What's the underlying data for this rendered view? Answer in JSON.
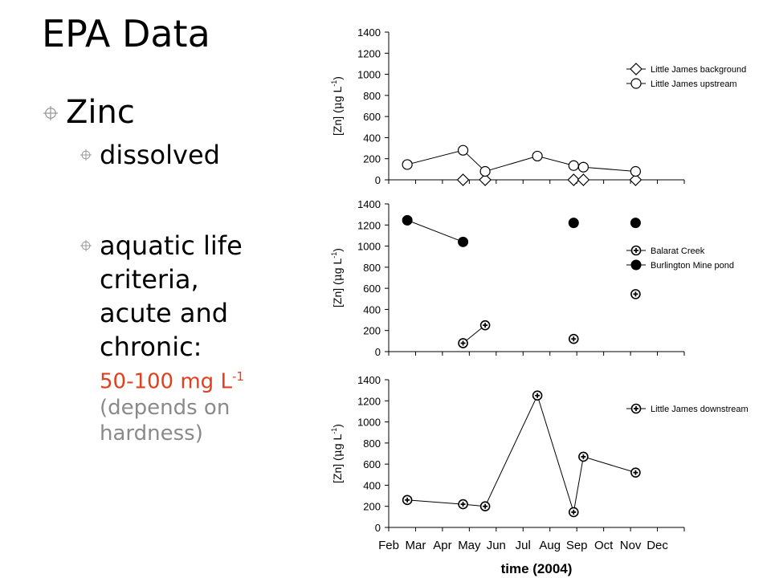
{
  "slide": {
    "title": "EPA Data",
    "bullet1": "Zinc",
    "bullet2": "dissolved",
    "bullet3_lines": [
      "aquatic life",
      "criteria,",
      "acute and",
      "chronic:"
    ],
    "criteria_value": "50-100 mg L",
    "criteria_exp": "-1",
    "note_lines": [
      "(depends on",
      "hardness)"
    ]
  },
  "axis": {
    "ylabel_prefix": "[Zn]  (",
    "ylabel_mu": "μ",
    "ylabel_mid": "g L",
    "ylabel_exp": "-1",
    "ylabel_suffix": ")",
    "xlabel": "time (2004)",
    "month_ticks": [
      "Feb",
      "Mar",
      "Apr",
      "May",
      "Jun",
      "Jul",
      "Aug",
      "Sep",
      "Oct",
      "Nov",
      "Dec"
    ]
  },
  "chart_data": [
    {
      "type": "line",
      "ylim": [
        0,
        1400
      ],
      "yticks": [
        0,
        200,
        400,
        600,
        800,
        1000,
        1200,
        1400
      ],
      "legend_position": "top-right",
      "series": [
        {
          "name": "Little James background",
          "marker": "diamond",
          "connected": true,
          "x": [
            "2004-04-25",
            "2004-05-20",
            "2004-08-28",
            "2004-09-08",
            "2004-11-06"
          ],
          "y": [
            0,
            0,
            0,
            0,
            0
          ]
        },
        {
          "name": "Little James upstream",
          "marker": "circle-open",
          "connected": true,
          "x": [
            "2004-02-22",
            "2004-04-25",
            "2004-05-20",
            "2004-07-18",
            "2004-08-28",
            "2004-09-08",
            "2004-11-06"
          ],
          "y": [
            145,
            280,
            80,
            225,
            135,
            120,
            80
          ]
        }
      ]
    },
    {
      "type": "line",
      "ylim": [
        0,
        1400
      ],
      "yticks": [
        0,
        200,
        400,
        600,
        800,
        1000,
        1200,
        1400
      ],
      "legend_position": "right",
      "series": [
        {
          "name": "Balarat Creek",
          "marker": "cross-open",
          "connected": true,
          "x": [
            "2004-04-25",
            "2004-05-20",
            "2004-08-28",
            "2004-11-06"
          ],
          "y": [
            80,
            250,
            120,
            545
          ],
          "segments": [
            [
              0,
              1
            ]
          ]
        },
        {
          "name": "Burlington Mine pond",
          "marker": "circle-filled",
          "connected": true,
          "x": [
            "2004-02-22",
            "2004-04-25",
            "2004-08-28",
            "2004-11-06"
          ],
          "y": [
            1245,
            1040,
            1220,
            1220
          ],
          "segments": [
            [
              0,
              1
            ]
          ]
        }
      ]
    },
    {
      "type": "line",
      "ylim": [
        0,
        1400
      ],
      "yticks": [
        0,
        200,
        400,
        600,
        800,
        1000,
        1200,
        1400
      ],
      "xlim": [
        "2004-02-01",
        "2004-12-31"
      ],
      "legend_position": "top-right",
      "series": [
        {
          "name": "Little James downstream",
          "marker": "cross-open",
          "connected": true,
          "x": [
            "2004-02-22",
            "2004-04-25",
            "2004-05-20",
            "2004-07-18",
            "2004-08-28",
            "2004-09-08",
            "2004-11-06"
          ],
          "y": [
            260,
            220,
            200,
            1250,
            145,
            670,
            520
          ]
        }
      ]
    }
  ]
}
